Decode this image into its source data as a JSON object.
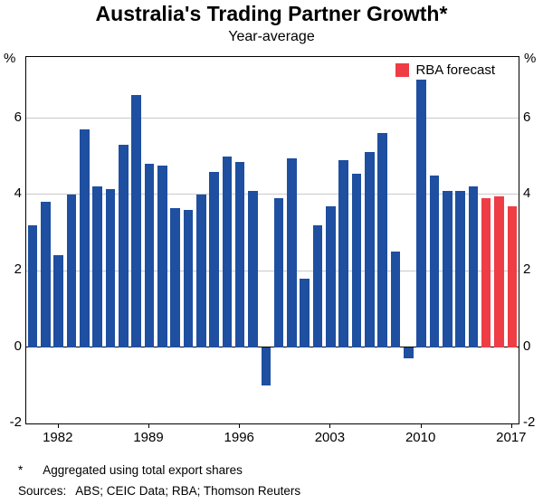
{
  "chart_data": {
    "type": "bar",
    "title": "Australia's Trading Partner Growth*",
    "subtitle": "Year-average",
    "y_unit": "%",
    "ylim": [
      -2,
      7.6
    ],
    "yticks": [
      -2,
      0,
      2,
      4,
      6
    ],
    "gridlines": [
      2,
      4,
      6
    ],
    "xticks": [
      1982,
      1989,
      1996,
      2003,
      2010,
      2017
    ],
    "legend": [
      {
        "label": "RBA forecast",
        "color": "#ee3d45"
      }
    ],
    "colors": {
      "actual": "#1e4fa0",
      "forecast": "#ee3d45"
    },
    "bars": [
      {
        "year": 1980,
        "value": 3.2,
        "type": "actual"
      },
      {
        "year": 1981,
        "value": 3.8,
        "type": "actual"
      },
      {
        "year": 1982,
        "value": 2.4,
        "type": "actual"
      },
      {
        "year": 1983,
        "value": 4.0,
        "type": "actual"
      },
      {
        "year": 1984,
        "value": 5.7,
        "type": "actual"
      },
      {
        "year": 1985,
        "value": 4.2,
        "type": "actual"
      },
      {
        "year": 1986,
        "value": 4.15,
        "type": "actual"
      },
      {
        "year": 1987,
        "value": 5.3,
        "type": "actual"
      },
      {
        "year": 1988,
        "value": 6.6,
        "type": "actual"
      },
      {
        "year": 1989,
        "value": 4.8,
        "type": "actual"
      },
      {
        "year": 1990,
        "value": 4.75,
        "type": "actual"
      },
      {
        "year": 1991,
        "value": 3.65,
        "type": "actual"
      },
      {
        "year": 1992,
        "value": 3.6,
        "type": "actual"
      },
      {
        "year": 1993,
        "value": 4.0,
        "type": "actual"
      },
      {
        "year": 1994,
        "value": 4.6,
        "type": "actual"
      },
      {
        "year": 1995,
        "value": 5.0,
        "type": "actual"
      },
      {
        "year": 1996,
        "value": 4.85,
        "type": "actual"
      },
      {
        "year": 1997,
        "value": 4.1,
        "type": "actual"
      },
      {
        "year": 1998,
        "value": -1.0,
        "type": "actual"
      },
      {
        "year": 1999,
        "value": 3.9,
        "type": "actual"
      },
      {
        "year": 2000,
        "value": 4.95,
        "type": "actual"
      },
      {
        "year": 2001,
        "value": 1.8,
        "type": "actual"
      },
      {
        "year": 2002,
        "value": 3.2,
        "type": "actual"
      },
      {
        "year": 2003,
        "value": 3.7,
        "type": "actual"
      },
      {
        "year": 2004,
        "value": 4.9,
        "type": "actual"
      },
      {
        "year": 2005,
        "value": 4.55,
        "type": "actual"
      },
      {
        "year": 2006,
        "value": 5.1,
        "type": "actual"
      },
      {
        "year": 2007,
        "value": 5.6,
        "type": "actual"
      },
      {
        "year": 2008,
        "value": 2.5,
        "type": "actual"
      },
      {
        "year": 2009,
        "value": -0.3,
        "type": "actual"
      },
      {
        "year": 2010,
        "value": 7.0,
        "type": "actual"
      },
      {
        "year": 2011,
        "value": 4.5,
        "type": "actual"
      },
      {
        "year": 2012,
        "value": 4.1,
        "type": "actual"
      },
      {
        "year": 2013,
        "value": 4.1,
        "type": "actual"
      },
      {
        "year": 2014,
        "value": 4.2,
        "type": "actual"
      },
      {
        "year": 2015,
        "value": 3.9,
        "type": "forecast"
      },
      {
        "year": 2016,
        "value": 3.95,
        "type": "forecast"
      },
      {
        "year": 2017,
        "value": 3.7,
        "type": "forecast"
      }
    ]
  },
  "footnotes": {
    "note_marker": "*",
    "note_text": "Aggregated using total export shares",
    "sources_label": "Sources:",
    "sources_text": "ABS; CEIC Data; RBA; Thomson Reuters"
  }
}
